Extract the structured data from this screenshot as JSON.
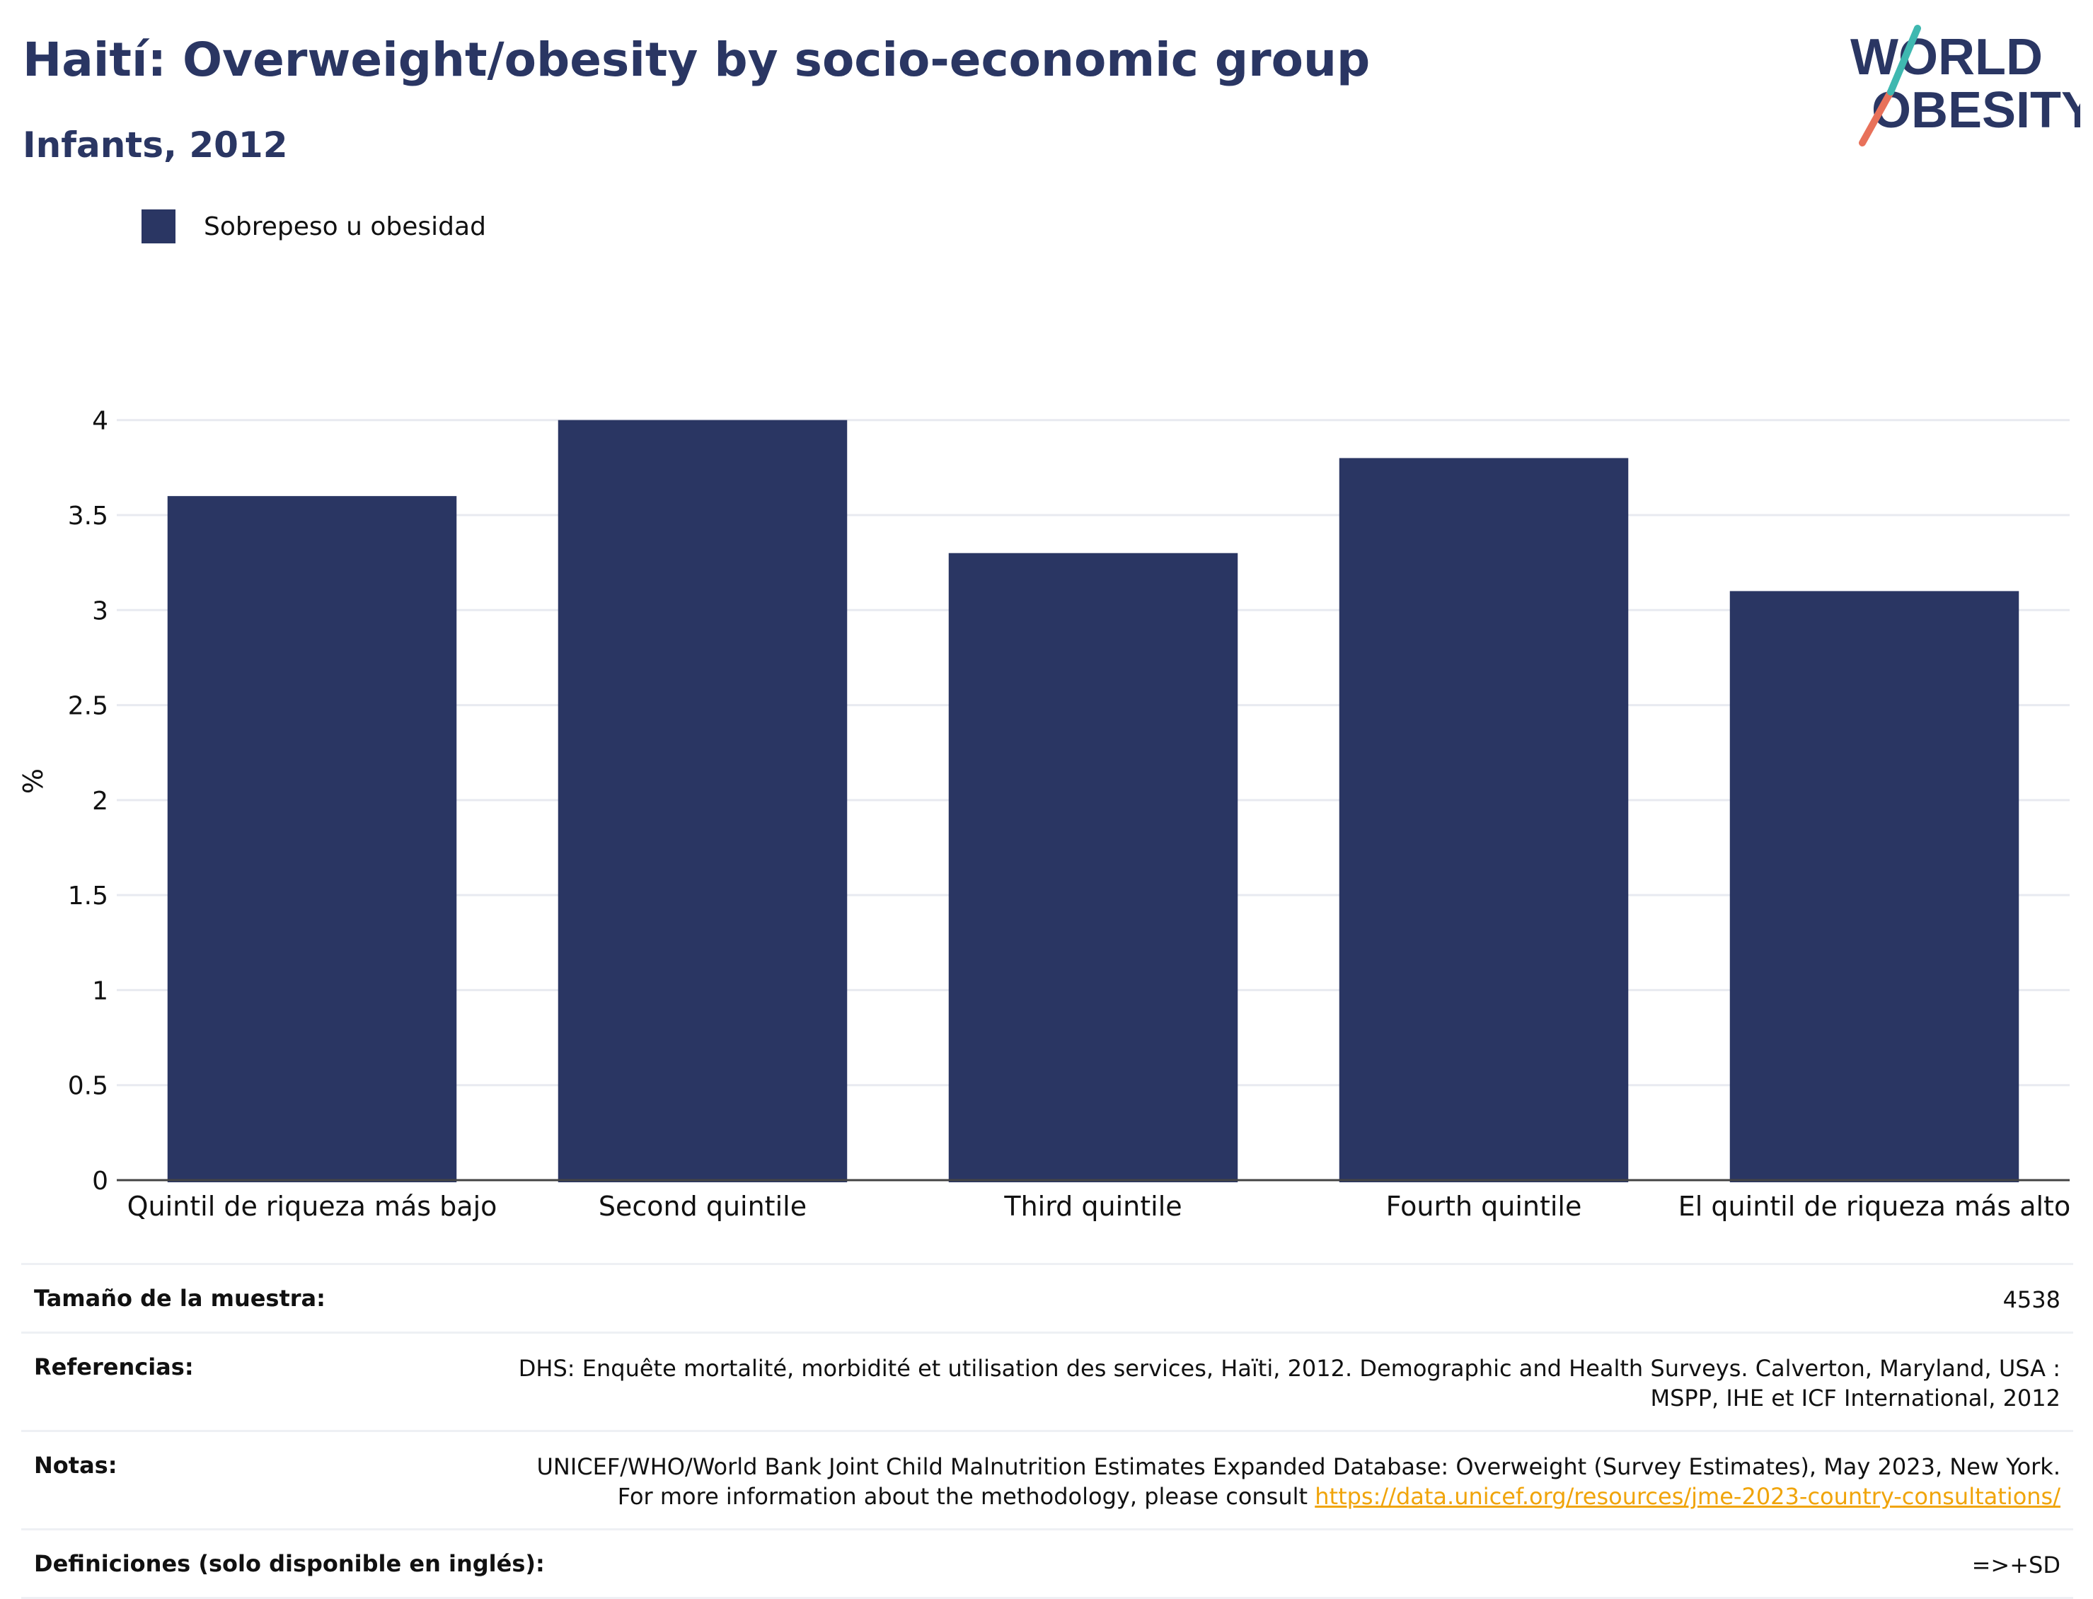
{
  "header": {
    "title": "Haití: Overweight/obesity by socio-economic group",
    "subtitle": "Infants, 2012"
  },
  "logo": {
    "line1": "WORLD",
    "line2": "OBESITY"
  },
  "colors": {
    "bar": "#2a3663",
    "title": "#2a3663",
    "grid": "#e8eaf0",
    "link": "#f0a40a"
  },
  "chart_data": {
    "type": "bar",
    "categories": [
      "Quintil de riqueza más bajo",
      "Second quintile",
      "Third quintile",
      "Fourth quintile",
      "El quintil de riqueza más alto"
    ],
    "series": [
      {
        "name": "Sobrepeso u obesidad",
        "values": [
          3.6,
          4.0,
          3.3,
          3.8,
          3.1
        ]
      }
    ],
    "xlabel": "",
    "ylabel": "%",
    "ylim": [
      0,
      4.2
    ],
    "yticks": [
      0,
      0.5,
      1,
      1.5,
      2,
      2.5,
      3,
      3.5,
      4
    ],
    "ytick_labels": [
      "0",
      "0.5",
      "1",
      "1.5",
      "2",
      "2.5",
      "3",
      "3.5",
      "4"
    ],
    "grid": true,
    "legend": "top-left"
  },
  "info_table": {
    "sample_label": "Tamaño de la muestra:",
    "sample_value": "4538",
    "references_label": "Referencias:",
    "references_value": "DHS: Enquête mortalité, morbidité et utilisation des services, Haïti, 2012. Demographic and Health Surveys. Calverton, Maryland, USA : MSPP, IHE et ICF International, 2012",
    "notes_label": "Notas:",
    "notes_value": "UNICEF/WHO/World Bank Joint Child Malnutrition Estimates Expanded Database: Overweight (Survey Estimates), May 2023, New York. For more information about the methodology, please consult",
    "notes_link": "https://data.unicef.org/resources/jme-2023-country-consultations/",
    "definitions_label": "Definiciones (solo disponible en inglés):",
    "definitions_value": "=>+SD"
  }
}
